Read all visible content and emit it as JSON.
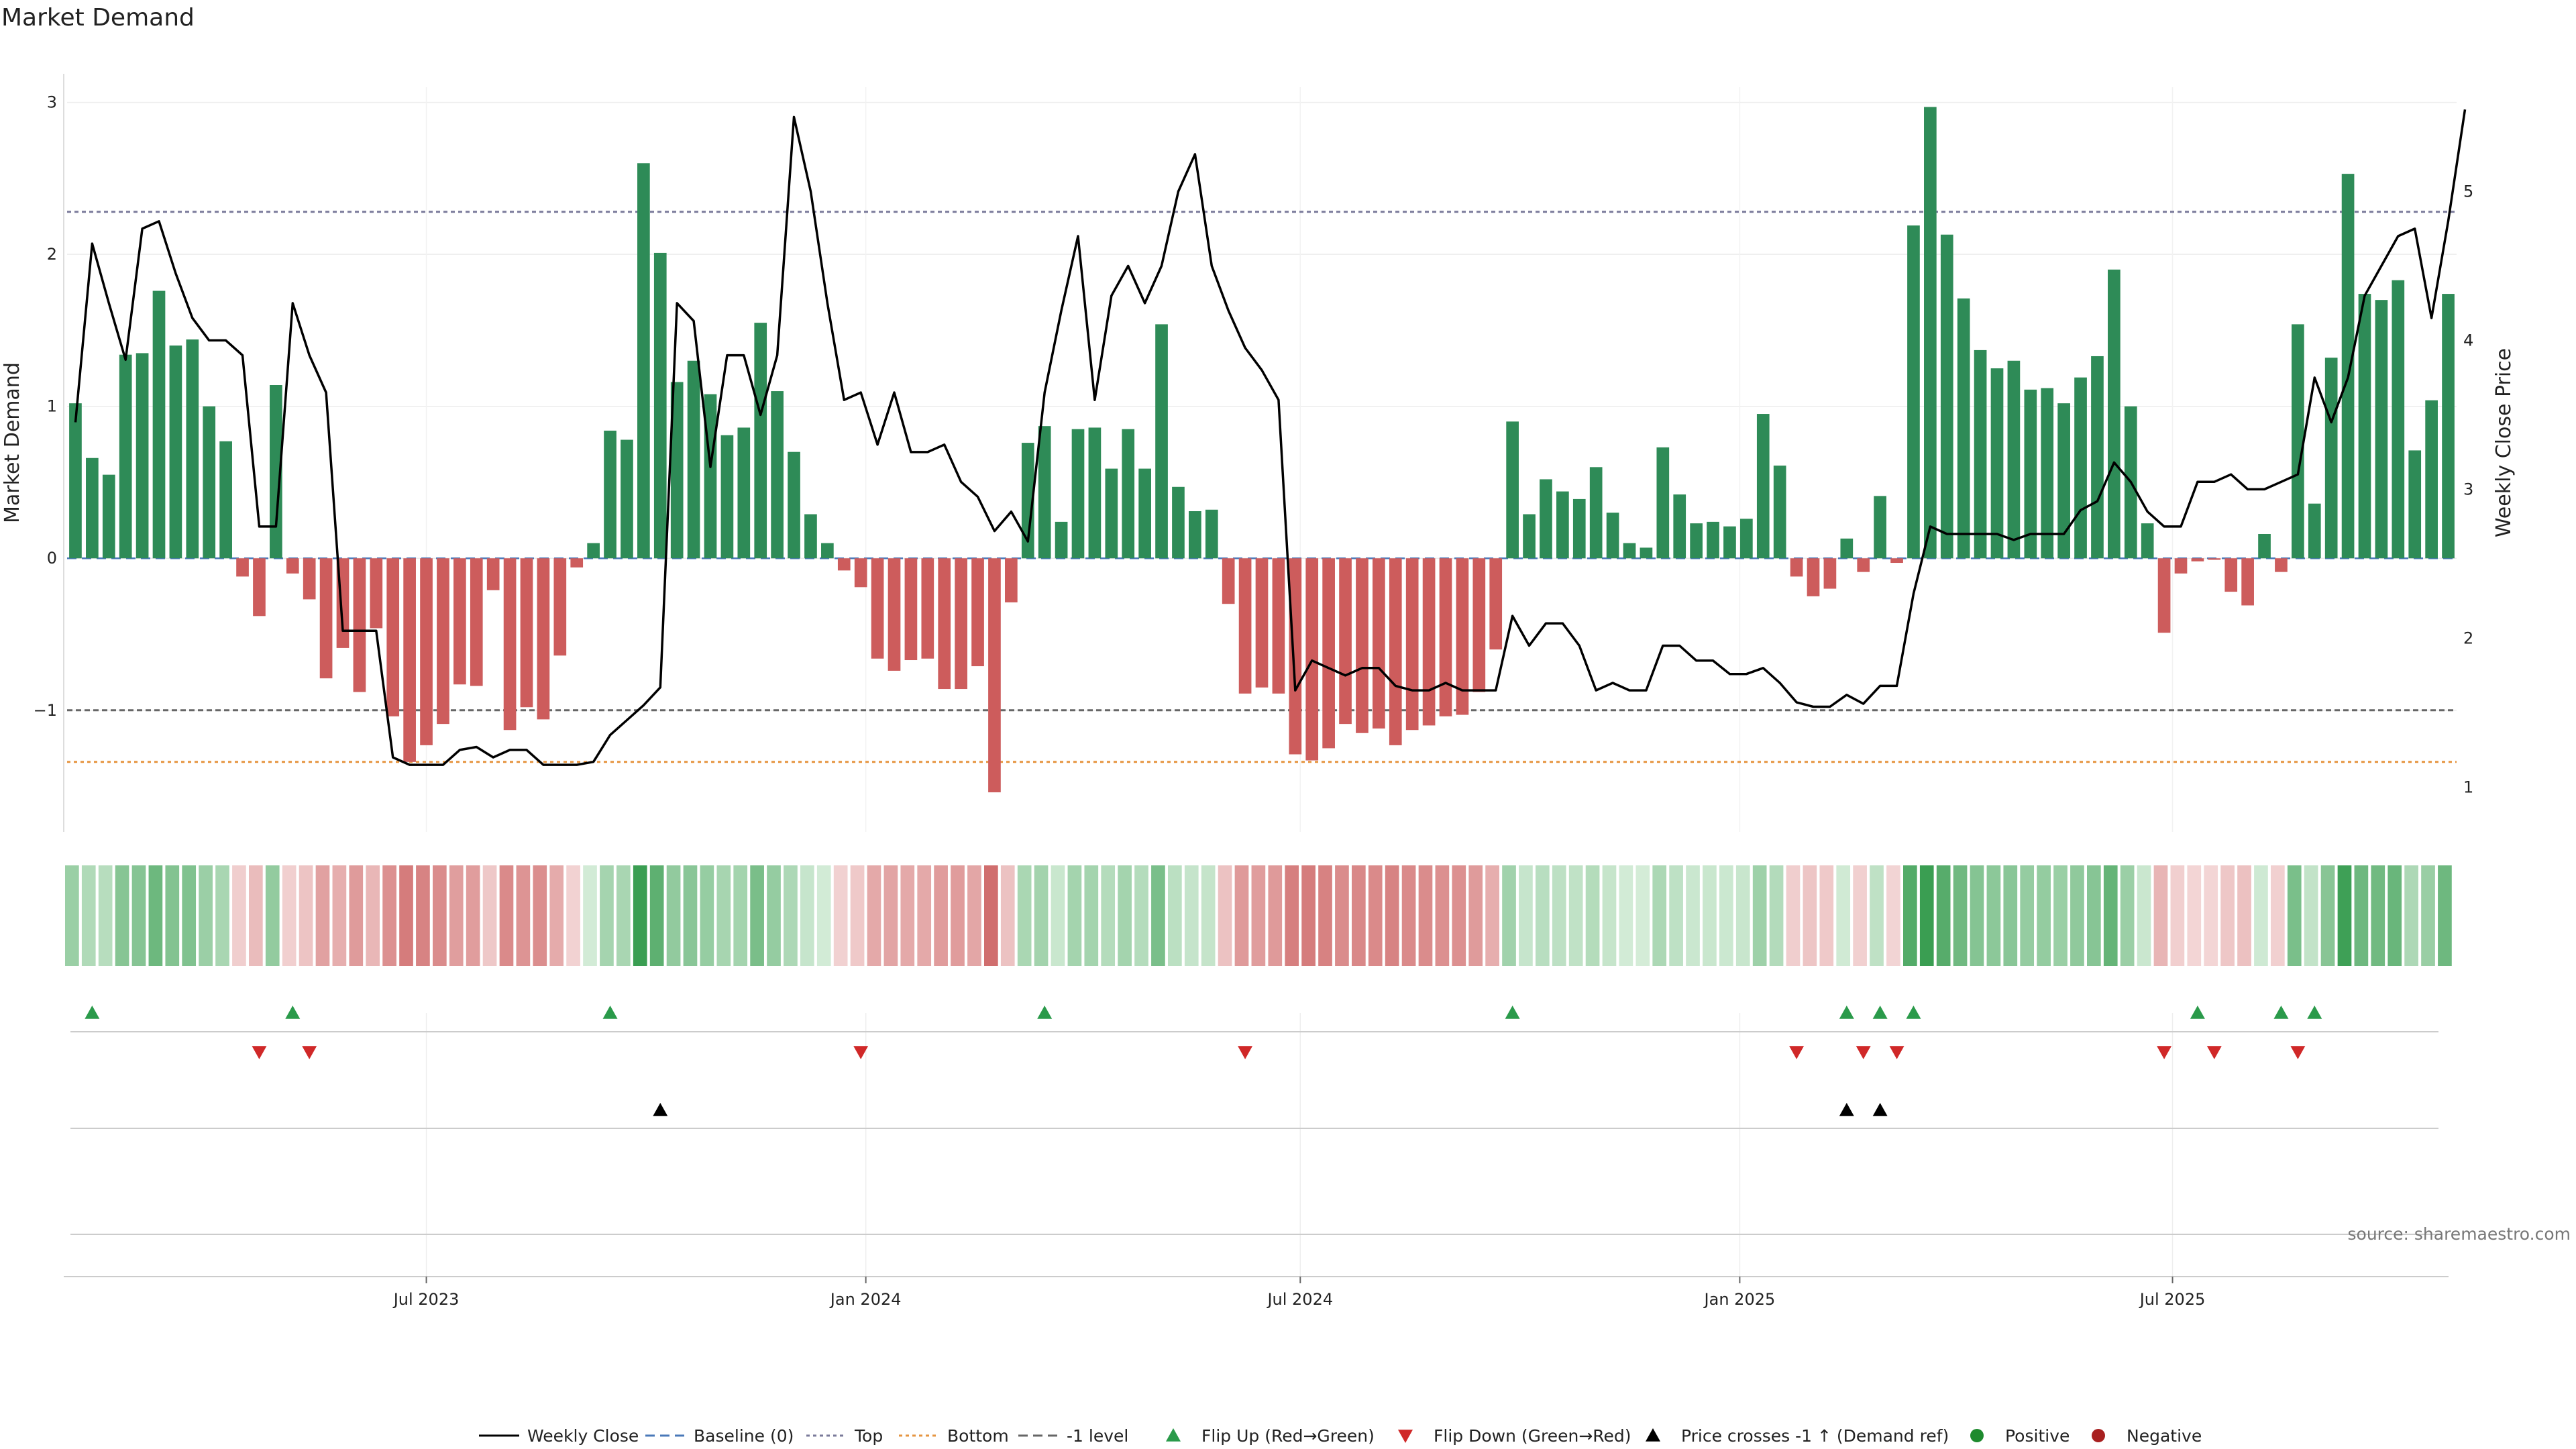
{
  "chart_data": {
    "type": "bar",
    "title": "Market Demand",
    "ylabel": "Market Demand",
    "y2label": "Weekly Close Price",
    "ylim": [
      -1.8,
      3.1
    ],
    "y2lim": [
      0.7,
      5.7
    ],
    "yticks": [
      -1,
      0,
      1,
      2,
      3
    ],
    "y2ticks": [
      1,
      2,
      3,
      4,
      5
    ],
    "reference_lines": {
      "top": 2.28,
      "minus1": -1.0,
      "bottom": -1.34
    },
    "x_ticks": [
      {
        "label": "Jul 2023",
        "index": 21
      },
      {
        "label": "Jan 2024",
        "index": 47.3
      },
      {
        "label": "Jul 2024",
        "index": 73.3
      },
      {
        "label": "Jan 2025",
        "index": 99.6
      },
      {
        "label": "Jul 2025",
        "index": 125.5
      }
    ],
    "demand": [
      1.02,
      0.66,
      0.55,
      1.34,
      1.35,
      1.76,
      1.4,
      1.44,
      1.0,
      0.77,
      -0.12,
      -0.38,
      1.14,
      -0.1,
      -0.27,
      -0.79,
      -0.59,
      -0.88,
      -0.46,
      -1.04,
      -1.34,
      -1.23,
      -1.09,
      -0.83,
      -0.84,
      -0.21,
      -1.13,
      -0.98,
      -1.06,
      -0.64,
      -0.06,
      0.1,
      0.84,
      0.78,
      2.6,
      2.01,
      1.16,
      1.3,
      1.08,
      0.81,
      0.86,
      1.55,
      1.1,
      0.7,
      0.29,
      0.1,
      -0.08,
      -0.19,
      -0.66,
      -0.74,
      -0.67,
      -0.66,
      -0.86,
      -0.86,
      -0.71,
      -1.54,
      -0.29,
      0.76,
      0.87,
      0.24,
      0.85,
      0.86,
      0.59,
      0.85,
      0.59,
      1.54,
      0.47,
      0.31,
      0.32,
      -0.3,
      -0.89,
      -0.85,
      -0.89,
      -1.29,
      -1.33,
      -1.25,
      -1.09,
      -1.15,
      -1.12,
      -1.23,
      -1.13,
      -1.1,
      -1.04,
      -1.03,
      -0.88,
      -0.6,
      0.9,
      0.29,
      0.52,
      0.44,
      0.39,
      0.6,
      0.3,
      0.1,
      0.07,
      0.73,
      0.42,
      0.23,
      0.24,
      0.21,
      0.26,
      0.95,
      0.61,
      -0.12,
      -0.25,
      -0.2,
      0.13,
      -0.09,
      0.41,
      -0.03,
      2.19,
      2.97,
      2.13,
      1.71,
      1.37,
      1.25,
      1.3,
      1.11,
      1.12,
      1.02,
      1.19,
      1.33,
      1.9,
      1.0,
      0.23,
      -0.49,
      -0.1,
      -0.02,
      -0.01,
      -0.22,
      -0.31,
      0.16,
      -0.09,
      1.54,
      0.36,
      1.32,
      2.53,
      1.74,
      1.7,
      1.83,
      0.71,
      1.04,
      1.74
    ],
    "weekly_close": [
      3.45,
      4.65,
      4.25,
      3.87,
      4.75,
      4.8,
      4.45,
      4.15,
      4.0,
      4.0,
      3.9,
      2.75,
      2.75,
      4.25,
      3.9,
      3.65,
      2.05,
      2.05,
      2.05,
      1.2,
      1.15,
      1.15,
      1.15,
      1.25,
      1.27,
      1.2,
      1.25,
      1.25,
      1.15,
      1.15,
      1.15,
      1.17,
      1.35,
      1.45,
      1.55,
      1.67,
      4.25,
      4.13,
      3.15,
      3.9,
      3.9,
      3.5,
      3.9,
      5.5,
      5.0,
      4.25,
      3.6,
      3.65,
      3.3,
      3.65,
      3.25,
      3.25,
      3.3,
      3.05,
      2.95,
      2.72,
      2.85,
      2.65,
      3.65,
      4.2,
      4.7,
      3.6,
      4.3,
      4.5,
      4.25,
      4.5,
      5.0,
      5.25,
      4.5,
      4.2,
      3.95,
      3.8,
      3.6,
      1.65,
      1.85,
      1.8,
      1.75,
      1.8,
      1.8,
      1.68,
      1.65,
      1.65,
      1.7,
      1.65,
      1.65,
      1.65,
      2.15,
      1.95,
      2.1,
      2.1,
      1.95,
      1.65,
      1.7,
      1.65,
      1.65,
      1.95,
      1.95,
      1.85,
      1.85,
      1.76,
      1.76,
      1.8,
      1.7,
      1.57,
      1.54,
      1.54,
      1.62,
      1.56,
      1.68,
      1.68,
      2.3,
      2.75,
      2.7,
      2.7,
      2.7,
      2.7,
      2.66,
      2.7,
      2.7,
      2.7,
      2.86,
      2.92,
      3.18,
      3.05,
      2.85,
      2.75,
      2.75,
      3.05,
      3.05,
      3.1,
      3.0,
      3.0,
      3.05,
      3.1,
      3.75,
      3.45,
      3.75,
      4.3,
      4.5,
      4.7,
      4.75,
      4.15,
      4.8,
      5.55
    ],
    "flip_up_indices": [
      1,
      13,
      32,
      58,
      86,
      106,
      108,
      110,
      127,
      132,
      134
    ],
    "flip_down_indices": [
      11,
      14,
      47,
      70,
      103,
      107,
      109,
      125,
      128,
      133
    ],
    "price_cross_indices": [
      35,
      106,
      108
    ]
  },
  "legend": [
    {
      "label": "Weekly Close",
      "symbol": "line-solid",
      "color": "#000000"
    },
    {
      "label": "Baseline (0)",
      "symbol": "line-dash",
      "color": "#4a78b8"
    },
    {
      "label": "Top",
      "symbol": "line-dot",
      "color": "#7a7a9a"
    },
    {
      "label": "Bottom",
      "symbol": "line-dot",
      "color": "#e69540"
    },
    {
      "label": "-1 level",
      "symbol": "line-dash",
      "color": "#666666"
    },
    {
      "label": "Flip Up (Red→Green)",
      "symbol": "triangle-up",
      "color": "#2a9a4a"
    },
    {
      "label": "Flip Down (Green→Red)",
      "symbol": "triangle-down",
      "color": "#d02828"
    },
    {
      "label": "Price crosses -1 ↑ (Demand ref)",
      "symbol": "triangle-up",
      "color": "#000000"
    },
    {
      "label": "Positive",
      "symbol": "circle",
      "color": "#1e8a2e"
    },
    {
      "label": "Negative",
      "symbol": "circle",
      "color": "#a82020"
    }
  ],
  "source_text": "source: sharemaestro.com",
  "colors": {
    "positive_bar": "#2e8b57",
    "negative_bar": "#cd5c5c",
    "close_line": "#000000"
  }
}
